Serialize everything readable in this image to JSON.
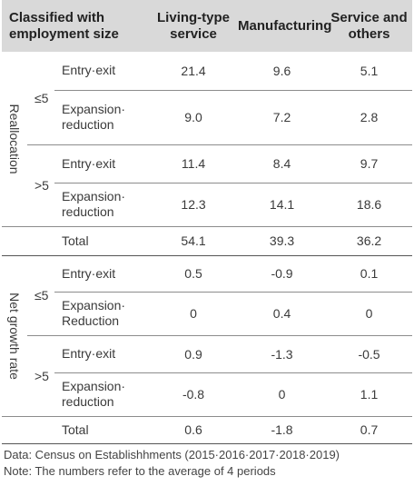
{
  "header": {
    "classified": "Classified with employment size",
    "col1": "Living-type service",
    "col2": "Manufacturing",
    "col3": "Service and others"
  },
  "reallocation": {
    "label": "Reallocation",
    "le5": {
      "size": "≤5",
      "entry": {
        "label": "Entry·exit",
        "v1": "21.4",
        "v2": "9.6",
        "v3": "5.1"
      },
      "expansion": {
        "label": "Expansion· reduction",
        "v1": "9.0",
        "v2": "7.2",
        "v3": "2.8"
      }
    },
    "gt5": {
      "size": ">5",
      "entry": {
        "label": "Entry·exit",
        "v1": "11.4",
        "v2": "8.4",
        "v3": "9.7"
      },
      "expansion": {
        "label": "Expansion· reduction",
        "v1": "12.3",
        "v2": "14.1",
        "v3": "18.6"
      }
    },
    "total": {
      "label": "Total",
      "v1": "54.1",
      "v2": "39.3",
      "v3": "36.2"
    }
  },
  "net": {
    "label": "Net growth rate",
    "le5": {
      "size": "≤5",
      "entry": {
        "label": "Entry·exit",
        "v1": "0.5",
        "v2": "-0.9",
        "v3": "0.1"
      },
      "expansion": {
        "label": "Expansion· Reduction",
        "v1": "0",
        "v2": "0.4",
        "v3": "0"
      }
    },
    "gt5": {
      "size": ">5",
      "entry": {
        "label": "Entry·exit",
        "v1": "0.9",
        "v2": "-1.3",
        "v3": "-0.5"
      },
      "expansion": {
        "label": "Expansion· reduction",
        "v1": "-0.8",
        "v2": "0",
        "v3": "1.1"
      }
    },
    "total": {
      "label": "Total",
      "v1": "0.6",
      "v2": "-1.8",
      "v3": "0.7"
    }
  },
  "notes": {
    "data": "Data: Census on Establishhments (2015·2016·2017·2018·2019)",
    "note": "Note: The numbers refer to the average of 4 periods"
  }
}
